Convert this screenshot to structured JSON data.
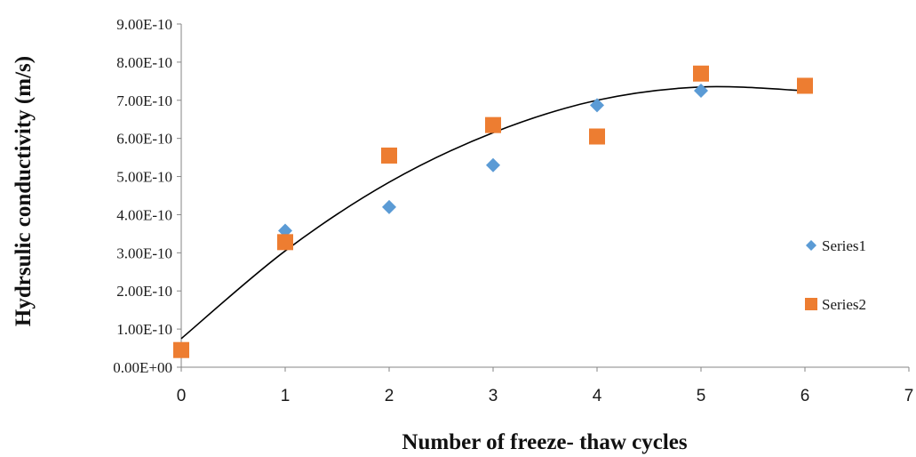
{
  "chart_data": {
    "type": "scatter",
    "title": "",
    "xlabel": "Number of freeze- thaw cycles",
    "ylabel": "Hydrsulic conductivity (m/s)",
    "xlim": [
      0,
      7
    ],
    "ylim": [
      0,
      9e-10
    ],
    "x_ticks": [
      "0",
      "1",
      "2",
      "3",
      "4",
      "5",
      "6",
      "7"
    ],
    "y_ticks": [
      "0.00E+00",
      "1.00E-10",
      "2.00E-10",
      "3.00E-10",
      "4.00E-10",
      "5.00E-10",
      "6.00E-10",
      "7.00E-10",
      "8.00E-10",
      "9.00E-10"
    ],
    "grid": false,
    "legend_position": "right",
    "series": [
      {
        "name": "Series1",
        "marker": "diamond",
        "color": "#5b9bd5",
        "points": [
          {
            "x": 0,
            "y": 4.5e-11
          },
          {
            "x": 1,
            "y": 3.58e-10
          },
          {
            "x": 2,
            "y": 4.2e-10
          },
          {
            "x": 3,
            "y": 5.3e-10
          },
          {
            "x": 4,
            "y": 6.87e-10
          },
          {
            "x": 5,
            "y": 7.25e-10
          },
          {
            "x": 6,
            "y": 7.4e-10
          }
        ]
      },
      {
        "name": "Series2",
        "marker": "square",
        "color": "#ed7d31",
        "points": [
          {
            "x": 0,
            "y": 4.5e-11
          },
          {
            "x": 1,
            "y": 3.28e-10
          },
          {
            "x": 2,
            "y": 5.55e-10
          },
          {
            "x": 3,
            "y": 6.35e-10
          },
          {
            "x": 4,
            "y": 6.05e-10
          },
          {
            "x": 5,
            "y": 7.7e-10
          },
          {
            "x": 6,
            "y": 7.38e-10
          }
        ]
      }
    ],
    "trendline": {
      "type": "polynomial",
      "color": "#000000",
      "points": [
        {
          "x": 0,
          "y": 7.5e-11
        },
        {
          "x": 1,
          "y": 3.05e-10
        },
        {
          "x": 2,
          "y": 4.85e-10
        },
        {
          "x": 3,
          "y": 6.15e-10
        },
        {
          "x": 4,
          "y": 7e-10
        },
        {
          "x": 5,
          "y": 7.35e-10
        },
        {
          "x": 6,
          "y": 7.25e-10
        }
      ]
    }
  }
}
